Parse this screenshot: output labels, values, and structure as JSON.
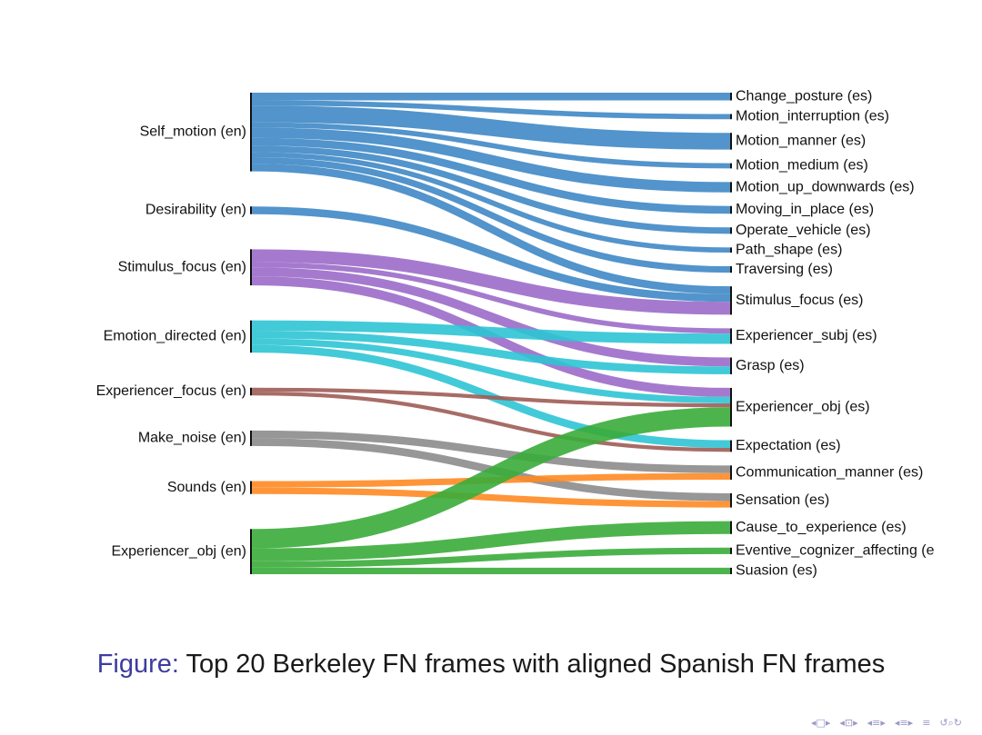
{
  "chart_data": {
    "type": "sankey",
    "sources": [
      "Self_motion (en)",
      "Desirability (en)",
      "Stimulus_focus (en)",
      "Emotion_directed (en)",
      "Experiencer_focus (en)",
      "Make_noise (en)",
      "Sounds (en)",
      "Experiencer_obj (en)"
    ],
    "targets": [
      "Change_posture (es)",
      "Motion_interruption (es)",
      "Motion_manner (es)",
      "Motion_medium (es)",
      "Motion_up_downwards (es)",
      "Moving_in_place (es)",
      "Operate_vehicle (es)",
      "Path_shape (es)",
      "Traversing (es)",
      "Stimulus_focus (es)",
      "Experiencer_subj (es)",
      "Grasp (es)",
      "Experiencer_obj (es)",
      "Expectation (es)",
      "Communication_manner (es)",
      "Sensation (es)",
      "Cause_to_experience (es)",
      "Eventive_cognizer_affecting (e",
      "Suasion (es)"
    ],
    "source_colors": {
      "Self_motion (en)": "#3f88c5",
      "Desirability (en)": "#3f88c5",
      "Stimulus_focus (en)": "#9b6bc9",
      "Emotion_directed (en)": "#2ec4d4",
      "Experiencer_focus (en)": "#9e5c55",
      "Make_noise (en)": "#8c8c8c",
      "Sounds (en)": "#ff8a24",
      "Experiencer_obj (en)": "#3aac3a"
    },
    "links": [
      {
        "source": "Self_motion (en)",
        "target": "Change_posture (es)",
        "value": 6
      },
      {
        "source": "Self_motion (en)",
        "target": "Motion_interruption (es)",
        "value": 4
      },
      {
        "source": "Self_motion (en)",
        "target": "Motion_manner (es)",
        "value": 13
      },
      {
        "source": "Self_motion (en)",
        "target": "Motion_medium (es)",
        "value": 4
      },
      {
        "source": "Self_motion (en)",
        "target": "Motion_up_downwards (es)",
        "value": 8
      },
      {
        "source": "Self_motion (en)",
        "target": "Moving_in_place (es)",
        "value": 6
      },
      {
        "source": "Self_motion (en)",
        "target": "Operate_vehicle (es)",
        "value": 5
      },
      {
        "source": "Self_motion (en)",
        "target": "Path_shape (es)",
        "value": 4
      },
      {
        "source": "Self_motion (en)",
        "target": "Traversing (es)",
        "value": 5
      },
      {
        "source": "Self_motion (en)",
        "target": "Stimulus_focus (es)",
        "value": 6
      },
      {
        "source": "Desirability (en)",
        "target": "Stimulus_focus (es)",
        "value": 6
      },
      {
        "source": "Stimulus_focus (en)",
        "target": "Stimulus_focus (es)",
        "value": 10
      },
      {
        "source": "Stimulus_focus (en)",
        "target": "Experiencer_subj (es)",
        "value": 4
      },
      {
        "source": "Stimulus_focus (en)",
        "target": "Grasp (es)",
        "value": 7
      },
      {
        "source": "Stimulus_focus (en)",
        "target": "Experiencer_obj (es)",
        "value": 7
      },
      {
        "source": "Emotion_directed (en)",
        "target": "Experiencer_subj (es)",
        "value": 8
      },
      {
        "source": "Emotion_directed (en)",
        "target": "Grasp (es)",
        "value": 6
      },
      {
        "source": "Emotion_directed (en)",
        "target": "Experiencer_obj (es)",
        "value": 5
      },
      {
        "source": "Emotion_directed (en)",
        "target": "Expectation (es)",
        "value": 6
      },
      {
        "source": "Experiencer_focus (en)",
        "target": "Experiencer_obj (es)",
        "value": 3
      },
      {
        "source": "Experiencer_focus (en)",
        "target": "Expectation (es)",
        "value": 3
      },
      {
        "source": "Make_noise (en)",
        "target": "Communication_manner (es)",
        "value": 6
      },
      {
        "source": "Make_noise (en)",
        "target": "Sensation (es)",
        "value": 6
      },
      {
        "source": "Sounds (en)",
        "target": "Communication_manner (es)",
        "value": 5
      },
      {
        "source": "Sounds (en)",
        "target": "Sensation (es)",
        "value": 5
      },
      {
        "source": "Experiencer_obj (en)",
        "target": "Experiencer_obj (es)",
        "value": 15
      },
      {
        "source": "Experiencer_obj (en)",
        "target": "Cause_to_experience (es)",
        "value": 10
      },
      {
        "source": "Experiencer_obj (en)",
        "target": "Eventive_cognizer_affecting (e",
        "value": 5
      },
      {
        "source": "Experiencer_obj (en)",
        "target": "Suasion (es)",
        "value": 5
      }
    ]
  },
  "caption": {
    "lead": "Figure:",
    "text": " Top 20 Berkeley FN frames with aligned Spanish FN frames"
  },
  "nav_icons": [
    "nav-prev-frame-icon",
    "nav-next-frame-icon",
    "nav-prev-section-icon",
    "nav-next-section-icon",
    "nav-prev-subsection-icon",
    "nav-next-subsection-icon",
    "nav-align-icon",
    "nav-search-icon"
  ]
}
